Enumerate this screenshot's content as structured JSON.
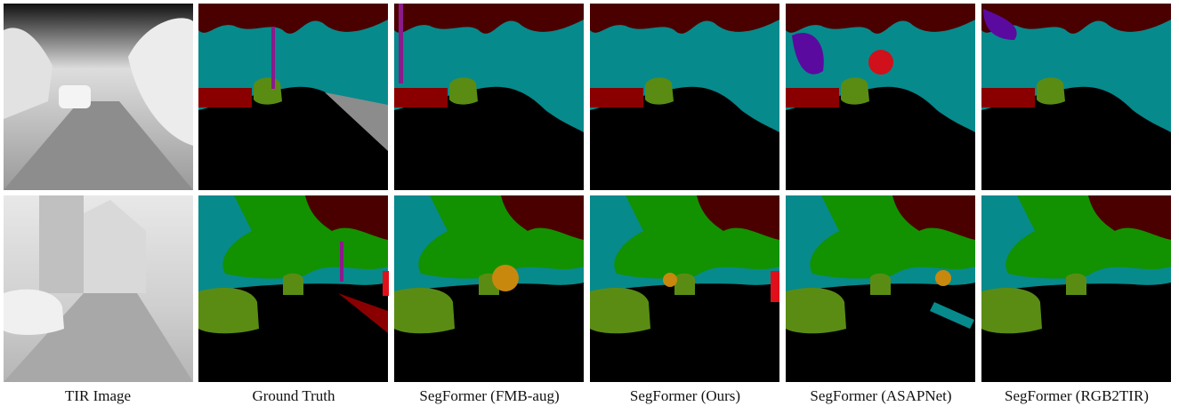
{
  "captions": [
    "TIR Image",
    "Ground Truth",
    "SegFormer (FMB-aug)",
    "SegFormer (Ours)",
    "SegFormer (ASAPNet)",
    "SegFormer (RGB2TIR)"
  ]
}
